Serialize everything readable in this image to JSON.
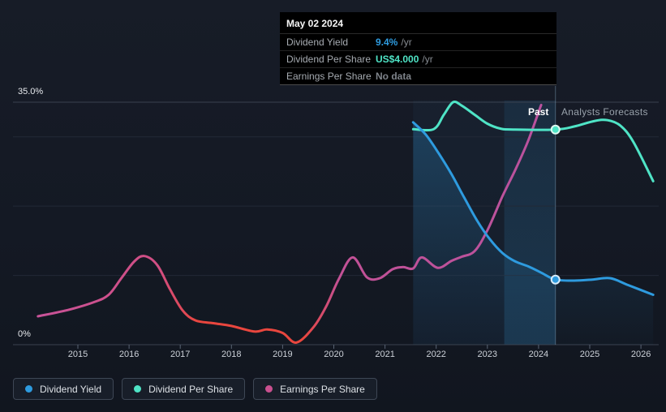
{
  "tooltip": {
    "date": "May 02 2024",
    "rows": [
      {
        "label": "Dividend Yield",
        "value": "9.4%",
        "suffix": "/yr",
        "color": "#2e9bdf"
      },
      {
        "label": "Dividend Per Share",
        "value": "US$4.000",
        "suffix": "/yr",
        "color": "#4fe4c6"
      },
      {
        "label": "Earnings Per Share",
        "value": "No data",
        "suffix": "",
        "color": "#7e838a"
      }
    ]
  },
  "annotations": {
    "past_label": "Past",
    "forecast_label": "Analysts Forecasts"
  },
  "legend": [
    {
      "label": "Dividend Yield",
      "color": "#2e9bdf"
    },
    {
      "label": "Dividend Per Share",
      "color": "#4fe4c6"
    },
    {
      "label": "Earnings Per Share",
      "color": "#c9508f"
    }
  ],
  "chart_data": {
    "type": "line",
    "x_axis_years": [
      2015,
      2016,
      2017,
      2018,
      2019,
      2020,
      2021,
      2022,
      2023,
      2024,
      2025,
      2026
    ],
    "y_axis": {
      "min": 0,
      "max": 35,
      "top_label": "35.0%",
      "bottom_label": "0%",
      "gridlines_pct": [
        35,
        30,
        20,
        10,
        0
      ],
      "labeled_pct": [
        35,
        0
      ]
    },
    "past_forecast_divider_x": 2024.33,
    "past_band": {
      "from": 2021.55,
      "to": 2024.33
    },
    "highlight_band": {
      "from": 2023.33,
      "to": 2024.33
    },
    "series": [
      {
        "name": "Dividend Yield",
        "color": "#2e9bdf",
        "unit": "percent_per_year",
        "marker": {
          "x": 2024.33,
          "y": 9.4,
          "tooltip_value": "9.4% /yr"
        },
        "points": [
          [
            2021.55,
            32.1
          ],
          [
            2021.8,
            30.3
          ],
          [
            2022.05,
            27.6
          ],
          [
            2022.3,
            24.6
          ],
          [
            2022.55,
            21.2
          ],
          [
            2022.8,
            17.9
          ],
          [
            2023.05,
            15.2
          ],
          [
            2023.3,
            13.2
          ],
          [
            2023.55,
            12.0
          ],
          [
            2023.8,
            11.3
          ],
          [
            2024.05,
            10.4
          ],
          [
            2024.33,
            9.4
          ],
          [
            2024.7,
            9.25
          ],
          [
            2025.05,
            9.4
          ],
          [
            2025.4,
            9.6
          ],
          [
            2025.75,
            8.6
          ],
          [
            2026.24,
            7.2
          ]
        ]
      },
      {
        "name": "Dividend Per Share",
        "color": "#4fe4c6",
        "unit": "plotted_on_percent_axis",
        "marker": {
          "x": 2024.33,
          "y": 31.05,
          "tooltip_value": "US$4.000 /yr"
        },
        "points": [
          [
            2021.55,
            31.1
          ],
          [
            2021.95,
            31.1
          ],
          [
            2022.15,
            33.2
          ],
          [
            2022.33,
            35.0
          ],
          [
            2022.5,
            34.5
          ],
          [
            2022.75,
            33.2
          ],
          [
            2023.0,
            31.9
          ],
          [
            2023.25,
            31.2
          ],
          [
            2023.5,
            31.05
          ],
          [
            2024.33,
            31.05
          ],
          [
            2024.7,
            31.5
          ],
          [
            2025.1,
            32.3
          ],
          [
            2025.35,
            32.4
          ],
          [
            2025.6,
            31.6
          ],
          [
            2025.85,
            29.3
          ],
          [
            2026.24,
            23.6
          ]
        ]
      },
      {
        "name": "Earnings Per Share",
        "color": "#c9508f",
        "color_gradient": [
          "#c85399",
          "#e9463e",
          "#ba529e"
        ],
        "unit": "plotted_on_percent_axis",
        "points": [
          [
            2014.22,
            4.1
          ],
          [
            2014.8,
            5.0
          ],
          [
            2015.3,
            6.1
          ],
          [
            2015.6,
            7.2
          ],
          [
            2015.85,
            9.6
          ],
          [
            2016.1,
            12.0
          ],
          [
            2016.3,
            12.8
          ],
          [
            2016.55,
            11.5
          ],
          [
            2016.8,
            8.0
          ],
          [
            2017.05,
            4.9
          ],
          [
            2017.3,
            3.5
          ],
          [
            2017.65,
            3.1
          ],
          [
            2018.0,
            2.7
          ],
          [
            2018.45,
            1.9
          ],
          [
            2018.7,
            2.2
          ],
          [
            2019.0,
            1.7
          ],
          [
            2019.27,
            0.3
          ],
          [
            2019.6,
            2.5
          ],
          [
            2019.85,
            5.5
          ],
          [
            2020.1,
            9.5
          ],
          [
            2020.37,
            12.6
          ],
          [
            2020.65,
            9.7
          ],
          [
            2020.9,
            9.6
          ],
          [
            2021.15,
            10.9
          ],
          [
            2021.35,
            11.2
          ],
          [
            2021.55,
            11.0
          ],
          [
            2021.72,
            12.6
          ],
          [
            2022.03,
            11.1
          ],
          [
            2022.3,
            12.1
          ],
          [
            2022.5,
            12.7
          ],
          [
            2022.75,
            13.5
          ],
          [
            2023.0,
            16.5
          ],
          [
            2023.3,
            21.5
          ],
          [
            2023.55,
            25.3
          ],
          [
            2023.8,
            29.5
          ],
          [
            2024.05,
            34.6
          ]
        ]
      }
    ]
  }
}
